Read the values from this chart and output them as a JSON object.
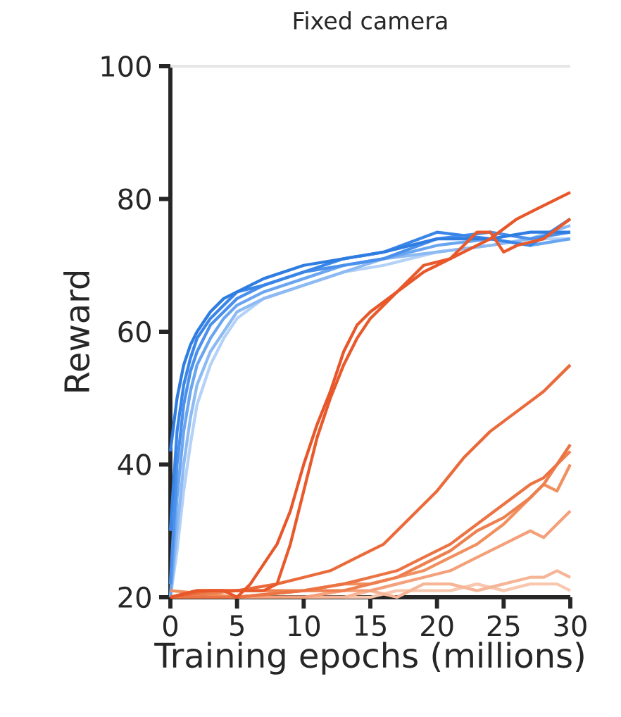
{
  "chart_data": {
    "type": "line",
    "title": "Fixed camera",
    "xlabel": "Training epochs (millions)",
    "ylabel": "Reward",
    "xlim": [
      0,
      30
    ],
    "ylim": [
      20,
      100
    ],
    "xticks": [
      0,
      5,
      10,
      15,
      20,
      25,
      30
    ],
    "yticks": [
      20,
      40,
      60,
      80,
      100
    ],
    "ref_lines": [
      {
        "axis": "y",
        "value": 100,
        "color": "#e6e6e6"
      }
    ],
    "series": [
      {
        "color": "#b4d1f7",
        "x": [
          0,
          0.5,
          1,
          1.5,
          2,
          3,
          4,
          5,
          7,
          10,
          13,
          16,
          20,
          24,
          27,
          30
        ],
        "values": [
          20,
          27,
          36,
          43,
          49,
          55,
          59,
          62,
          65,
          67,
          69,
          70,
          72,
          73,
          74,
          74
        ]
      },
      {
        "color": "#8dbaf3",
        "x": [
          0,
          0.5,
          1,
          1.5,
          2,
          3,
          4,
          5,
          7,
          10,
          13,
          16,
          20,
          24,
          27,
          30
        ],
        "values": [
          20,
          30,
          40,
          47,
          52,
          57,
          60,
          63,
          65,
          67,
          69,
          71,
          72,
          73,
          74,
          76
        ]
      },
      {
        "color": "#6aa6f0",
        "x": [
          0,
          0.5,
          1,
          1.5,
          2,
          3,
          4,
          5,
          7,
          10,
          13,
          16,
          20,
          24,
          27,
          30
        ],
        "values": [
          20,
          35,
          45,
          51,
          55,
          59,
          62,
          64,
          66,
          68,
          70,
          71,
          73,
          74,
          73,
          74
        ]
      },
      {
        "color": "#4a90ec",
        "x": [
          0,
          0.5,
          1,
          1.5,
          2,
          3,
          4,
          5,
          7,
          10,
          13,
          16,
          20,
          24,
          27,
          30
        ],
        "values": [
          22,
          40,
          49,
          54,
          57,
          61,
          63,
          65,
          67,
          69,
          70,
          71,
          74,
          75,
          74,
          75
        ]
      },
      {
        "color": "#3a86e8",
        "x": [
          0,
          0.5,
          1,
          1.5,
          2,
          3,
          4,
          5,
          7,
          10,
          13,
          16,
          20,
          24,
          27,
          30
        ],
        "values": [
          30,
          45,
          52,
          56,
          59,
          62,
          64,
          66,
          67,
          69,
          71,
          72,
          75,
          74,
          73,
          77
        ]
      },
      {
        "color": "#2f7de1",
        "x": [
          0,
          0.5,
          1,
          1.5,
          2,
          3,
          4,
          5,
          7,
          10,
          13,
          16,
          20,
          24,
          27,
          30
        ],
        "values": [
          42,
          50,
          55,
          58,
          60,
          63,
          65,
          66,
          68,
          70,
          71,
          72,
          74,
          74,
          75,
          75
        ]
      },
      {
        "color": "#f8c7ae",
        "x": [
          0,
          5,
          10,
          13,
          15,
          17,
          19,
          21,
          23,
          25,
          27,
          28,
          29,
          30
        ],
        "values": [
          20,
          20,
          20,
          20,
          20,
          21,
          21,
          21,
          22,
          21,
          22,
          22,
          22,
          21
        ]
      },
      {
        "color": "#f6b596",
        "x": [
          0,
          5,
          10,
          13,
          15,
          17,
          19,
          21,
          23,
          25,
          27,
          28,
          29,
          30
        ],
        "values": [
          20,
          20,
          20,
          20,
          21,
          20,
          22,
          22,
          21,
          22,
          23,
          23,
          24,
          23
        ]
      },
      {
        "color": "#f4a07a",
        "x": [
          0,
          5,
          10,
          13,
          15,
          17,
          19,
          21,
          23,
          25,
          27,
          28,
          29,
          30
        ],
        "values": [
          20,
          20,
          20,
          21,
          21,
          22,
          23,
          24,
          26,
          28,
          30,
          29,
          31,
          33
        ]
      },
      {
        "color": "#f0905f",
        "x": [
          0,
          5,
          10,
          13,
          15,
          17,
          19,
          21,
          23,
          25,
          27,
          28,
          29,
          30
        ],
        "values": [
          21,
          20,
          21,
          22,
          22,
          23,
          24,
          26,
          28,
          31,
          35,
          37,
          36,
          40
        ]
      },
      {
        "color": "#ee8050",
        "x": [
          0,
          5,
          10,
          13,
          15,
          17,
          19,
          21,
          23,
          25,
          27,
          28,
          29,
          30
        ],
        "values": [
          20,
          21,
          21,
          21,
          22,
          23,
          25,
          27,
          30,
          32,
          35,
          37,
          40,
          42
        ]
      },
      {
        "color": "#ec7444",
        "x": [
          0,
          5,
          10,
          13,
          15,
          17,
          19,
          21,
          23,
          25,
          27,
          28,
          29,
          30
        ],
        "values": [
          20,
          20,
          21,
          22,
          23,
          24,
          26,
          28,
          31,
          34,
          37,
          38,
          40,
          43
        ]
      },
      {
        "color": "#ea6a3a",
        "x": [
          0,
          3,
          5,
          8,
          10,
          12,
          14,
          16,
          18,
          20,
          22,
          24,
          26,
          28,
          30
        ],
        "values": [
          20,
          21,
          21,
          22,
          23,
          24,
          26,
          28,
          32,
          36,
          41,
          45,
          48,
          51,
          55
        ]
      },
      {
        "color": "#e85a2c",
        "x": [
          0,
          2,
          4,
          6,
          7,
          8,
          9,
          10,
          11,
          12,
          13,
          14,
          15,
          17,
          19,
          21,
          22,
          23,
          24,
          25,
          26,
          28,
          30
        ],
        "values": [
          20,
          21,
          21,
          21,
          21,
          22,
          28,
          36,
          44,
          50,
          55,
          59,
          62,
          66,
          70,
          71,
          73,
          75,
          75,
          72,
          73,
          74,
          77
        ]
      },
      {
        "color": "#e8572a",
        "x": [
          0,
          2,
          4,
          5,
          6,
          7,
          8,
          9,
          10,
          11,
          12,
          13,
          14,
          15,
          17,
          19,
          20,
          22,
          24,
          26,
          28,
          30
        ],
        "values": [
          20,
          21,
          21,
          20,
          22,
          25,
          28,
          33,
          40,
          46,
          51,
          57,
          61,
          63,
          66,
          69,
          70,
          72,
          74,
          77,
          79,
          81
        ]
      }
    ]
  }
}
